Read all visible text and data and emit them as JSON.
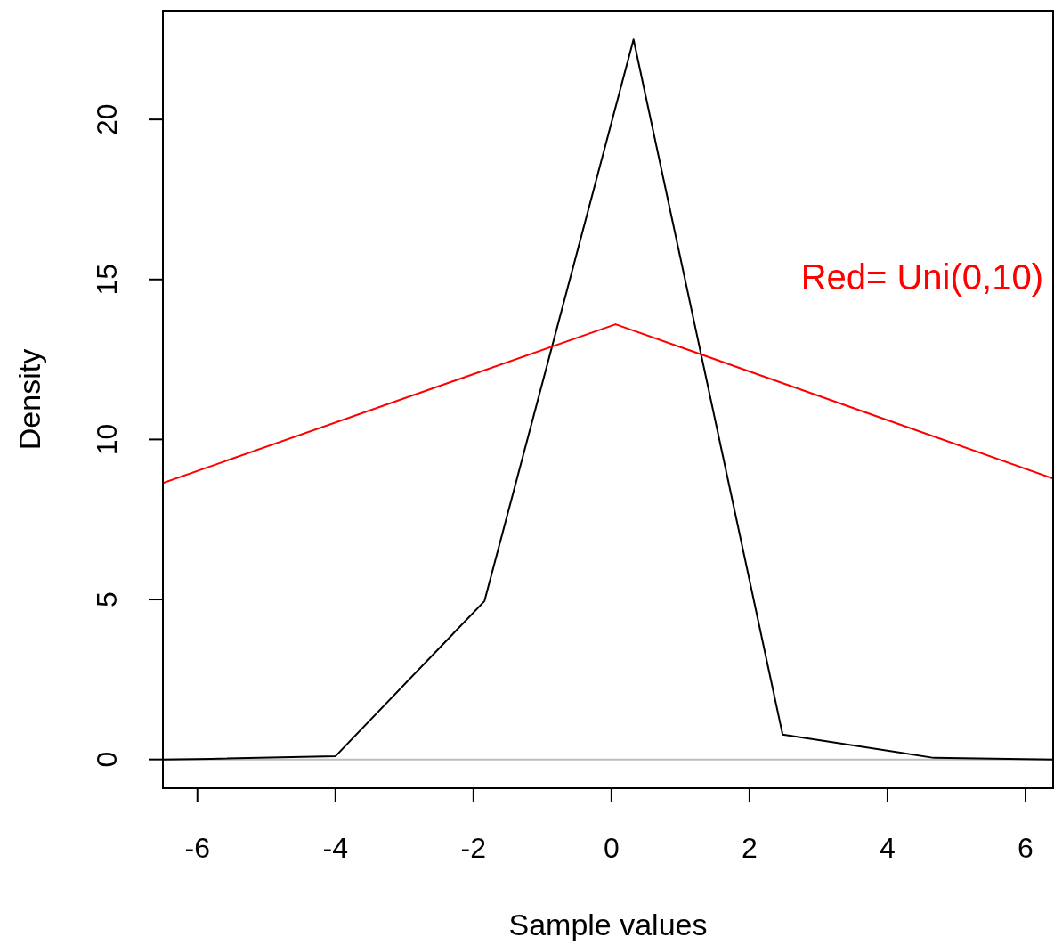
{
  "chart_data": {
    "type": "line",
    "xlabel": "Sample values",
    "ylabel": "Density",
    "xlim": [
      -6.5,
      6.4
    ],
    "ylim": [
      -0.9,
      23.4
    ],
    "xticks": [
      -6,
      -4,
      -2,
      0,
      2,
      4,
      6
    ],
    "yticks": [
      0,
      5,
      10,
      15,
      20
    ],
    "series": [
      {
        "color": "#000000",
        "x": [
          -6.5,
          -5.8,
          -4.0,
          -1.84,
          0.32,
          2.48,
          4.67,
          6.4
        ],
        "values": [
          0,
          0.02,
          0.1,
          4.95,
          22.5,
          0.78,
          0.05,
          0
        ]
      },
      {
        "color": "#ff0000",
        "x": [
          -6.5,
          0.06,
          6.4
        ],
        "values": [
          8.64,
          13.6,
          8.78
        ]
      }
    ],
    "ref_lines": [
      {
        "axis": "y",
        "value": 0,
        "color": "#bebebe"
      }
    ],
    "annotations": [
      "Red= Uni(0,10)"
    ]
  }
}
